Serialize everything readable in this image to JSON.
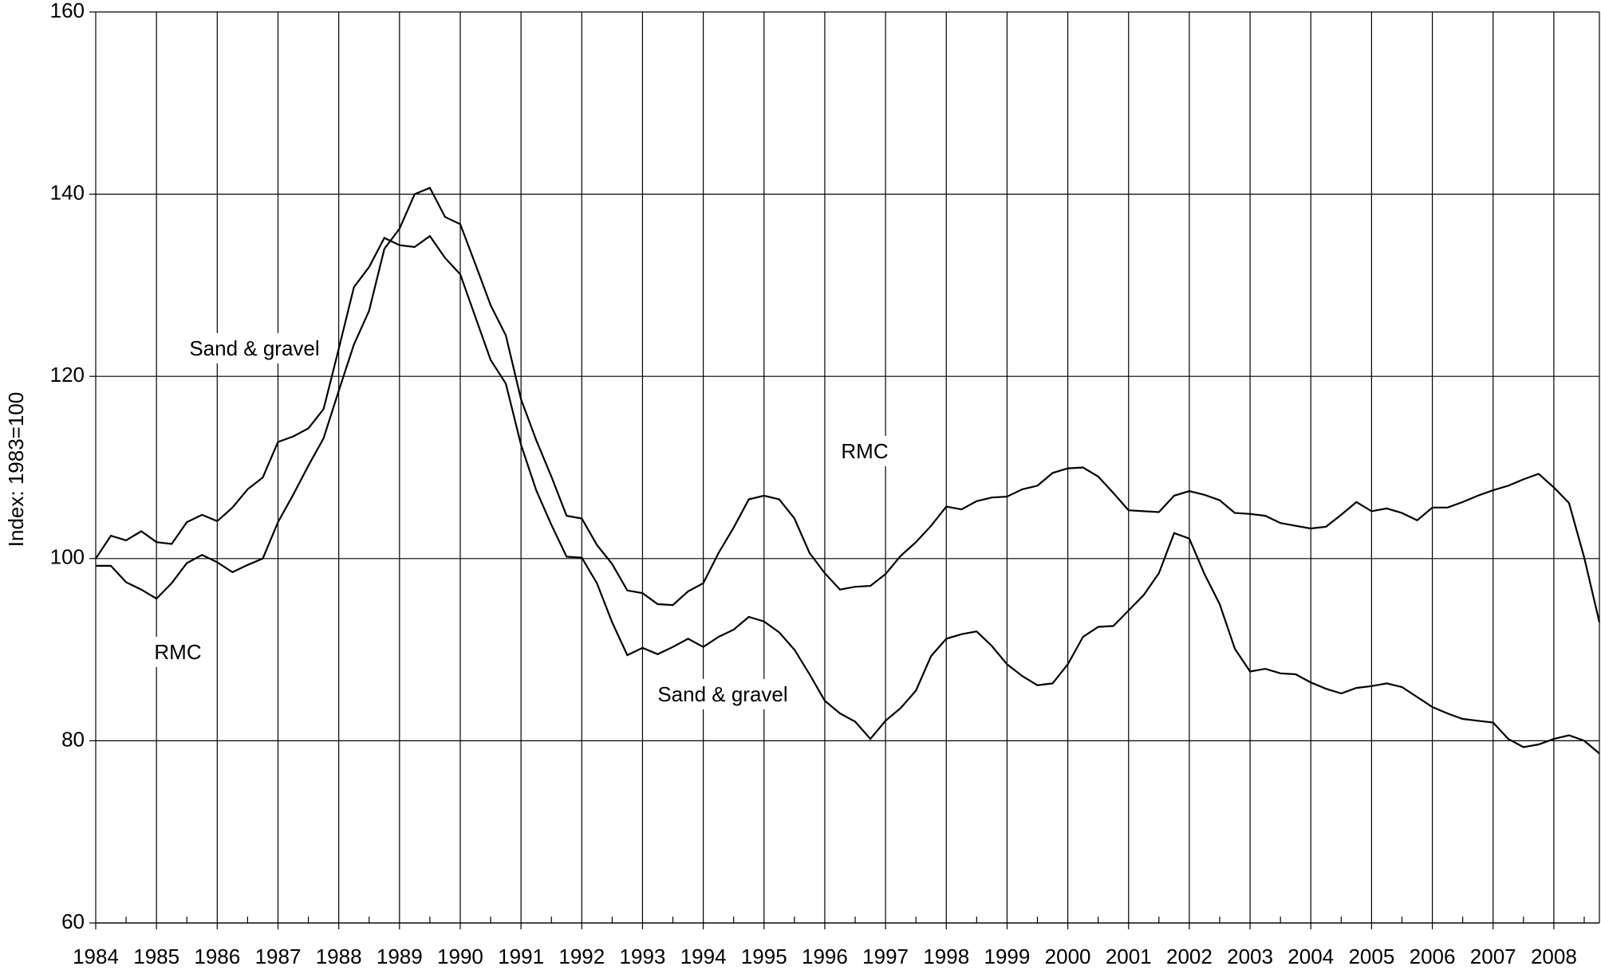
{
  "chart_data": {
    "type": "line",
    "y_label": "Index: 1983=100",
    "ylim": [
      60,
      160
    ],
    "yticks": [
      60,
      80,
      100,
      120,
      140,
      160
    ],
    "grid": true,
    "categories": [
      "1984",
      null,
      null,
      null,
      "1985",
      null,
      null,
      null,
      "1986",
      null,
      null,
      null,
      "1987",
      null,
      null,
      null,
      "1988",
      null,
      null,
      null,
      "1989",
      null,
      null,
      null,
      "1990",
      null,
      null,
      null,
      "1991",
      null,
      null,
      null,
      "1992",
      null,
      null,
      null,
      "1993",
      null,
      null,
      null,
      "1994",
      null,
      null,
      null,
      "1995",
      null,
      null,
      null,
      "1996",
      null,
      null,
      null,
      "1997",
      null,
      null,
      null,
      "1998",
      null,
      null,
      null,
      "1999",
      null,
      null,
      null,
      "2000",
      null,
      null,
      null,
      "2001",
      null,
      null,
      null,
      "2002",
      null,
      null,
      null,
      "2003",
      null,
      null,
      null,
      "2004",
      null,
      null,
      null,
      "2005",
      null,
      null,
      null,
      "2006",
      null,
      null,
      null,
      "2007",
      null,
      null,
      null,
      "2008",
      null,
      null,
      null
    ],
    "series": [
      {
        "name": "Sand & gravel",
        "color": "#000000",
        "values": [
          100,
          102.5,
          102,
          103,
          101.8,
          101.6,
          104,
          104.8,
          104.1,
          105.6,
          107.6,
          108.9,
          112.8,
          113.4,
          114.3,
          116.4,
          123,
          129.8,
          132,
          135.2,
          134.4,
          134.2,
          135.4,
          133,
          131.2,
          126.5,
          121.8,
          119.2,
          112.5,
          107.5,
          103.7,
          100.2,
          100.1,
          97.3,
          93,
          89.4,
          90.2,
          89.5,
          90.3,
          91.2,
          90.3,
          91.4,
          92.2,
          93.6,
          93.1,
          91.9,
          90,
          87.3,
          84.4,
          83,
          82.1,
          80.2,
          82.2,
          83.6,
          85.5,
          89.3,
          91.2,
          91.7,
          92,
          90.4,
          88.4,
          87.1,
          86.1,
          86.3,
          88.4,
          91.4,
          92.5,
          92.6,
          94.3,
          96,
          98.4,
          102.8,
          102.2,
          98.3,
          95,
          90.1,
          87.6,
          87.9,
          87.4,
          87.3,
          86.4,
          85.7,
          85.2,
          85.8,
          86,
          86.3,
          85.9,
          84.8,
          83.7,
          83,
          82.4,
          82.2,
          82,
          80.2,
          79.3,
          79.6,
          80.2,
          80.6,
          80,
          78.6
        ]
      },
      {
        "name": "RMC",
        "color": "#000000",
        "values": [
          99.2,
          99.2,
          97.4,
          96.6,
          95.6,
          97.3,
          99.5,
          100.4,
          99.6,
          98.5,
          99.3,
          100,
          104,
          107,
          110.2,
          113.2,
          118.4,
          123.5,
          127.2,
          134,
          136.2,
          140,
          140.7,
          137.5,
          136.7,
          132.3,
          127.8,
          124.5,
          117.5,
          113,
          109,
          104.7,
          104.4,
          101.5,
          99.4,
          96.5,
          96.2,
          95,
          94.9,
          96.4,
          97.3,
          100.6,
          103.4,
          106.5,
          106.9,
          106.5,
          104.4,
          100.6,
          98.4,
          96.6,
          96.9,
          97,
          98.3,
          100.3,
          101.8,
          103.6,
          105.7,
          105.4,
          106.3,
          106.7,
          106.8,
          107.6,
          108,
          109.4,
          109.9,
          110,
          109,
          107.2,
          105.3,
          105.2,
          105.1,
          106.9,
          107.4,
          107,
          106.4,
          105,
          104.9,
          104.7,
          103.9,
          103.6,
          103.3,
          103.5,
          104.8,
          106.2,
          105.2,
          105.5,
          105,
          104.2,
          105.6,
          105.6,
          106.2,
          106.9,
          107.5,
          108,
          108.7,
          109.3,
          107.8,
          106.1,
          100.1,
          93
        ]
      }
    ],
    "annotations": [
      "Sand & gravel",
      "RMC",
      "RMC",
      "Sand & gravel"
    ]
  }
}
